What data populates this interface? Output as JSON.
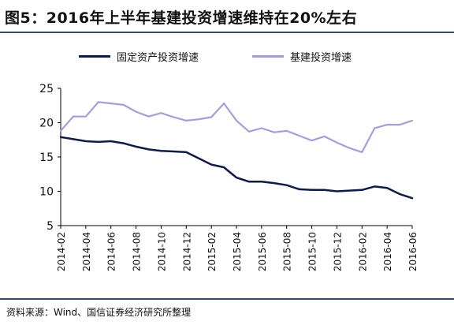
{
  "header": {
    "title": "图5：2016年上半年基建投资增速维持在20%左右"
  },
  "footer": {
    "source": "资料来源：Wind、国信证券经济研究所整理"
  },
  "chart_data": {
    "type": "line",
    "x": [
      "2014-02",
      "2014-03",
      "2014-04",
      "2014-05",
      "2014-06",
      "2014-07",
      "2014-08",
      "2014-09",
      "2014-10",
      "2014-11",
      "2014-12",
      "2015-01",
      "2015-02",
      "2015-03",
      "2015-04",
      "2015-05",
      "2015-06",
      "2015-07",
      "2015-08",
      "2015-09",
      "2015-10",
      "2015-11",
      "2015-12",
      "2016-01",
      "2016-02",
      "2016-03",
      "2016-04",
      "2016-05",
      "2016-06"
    ],
    "tick_labels": [
      "2014-02",
      "2014-04",
      "2014-06",
      "2014-08",
      "2014-10",
      "2014-12",
      "2015-02",
      "2015-04",
      "2015-06",
      "2015-08",
      "2015-10",
      "2015-12",
      "2016-02",
      "2016-04",
      "2016-06"
    ],
    "series": [
      {
        "name": "固定资产投资增速",
        "color": "#0d1a4d",
        "values": [
          17.9,
          17.6,
          17.3,
          17.2,
          17.3,
          17.0,
          16.5,
          16.1,
          15.9,
          15.8,
          15.7,
          14.8,
          13.9,
          13.5,
          12.0,
          11.4,
          11.4,
          11.2,
          10.9,
          10.3,
          10.2,
          10.2,
          10.0,
          10.1,
          10.2,
          10.7,
          10.5,
          9.6,
          9.0
        ]
      },
      {
        "name": "基建投资增速",
        "color": "#9f9fe0",
        "values": [
          18.8,
          20.9,
          20.9,
          23.0,
          22.8,
          22.6,
          21.6,
          20.9,
          21.4,
          20.8,
          20.3,
          20.5,
          20.8,
          22.8,
          20.3,
          18.7,
          19.2,
          18.6,
          18.8,
          18.1,
          17.4,
          18.0,
          17.1,
          16.3,
          15.7,
          19.2,
          19.7,
          19.7,
          20.3
        ]
      }
    ],
    "yticks": [
      5,
      10,
      15,
      20,
      25
    ],
    "ylim": [
      5,
      25
    ],
    "legend_position": "top",
    "grid": false
  }
}
